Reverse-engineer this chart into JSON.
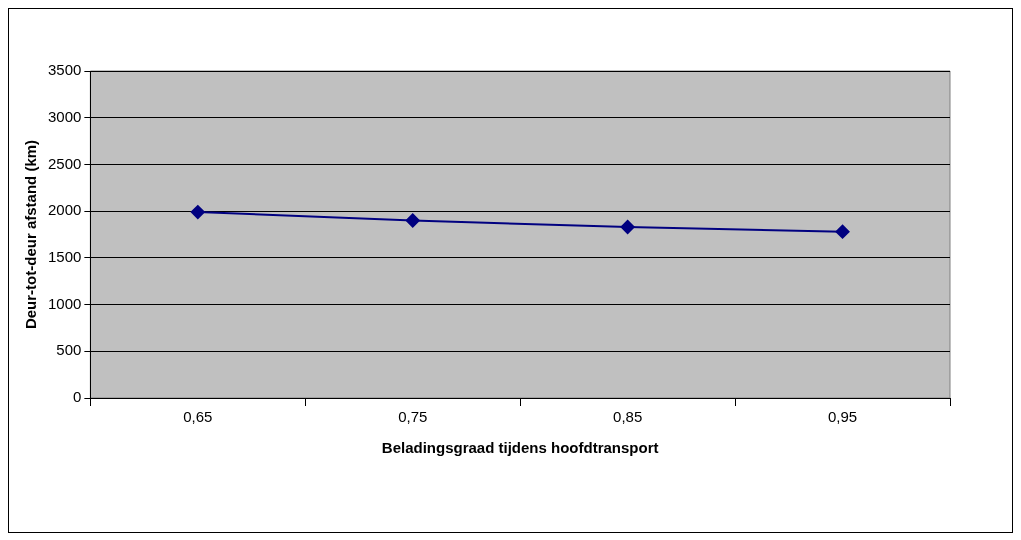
{
  "chart_data": {
    "type": "line",
    "xlabel": "Beladingsgraad tijdens hoofdtransport",
    "ylabel": "Deur-tot-deur afstand (km)",
    "categories": [
      "0,65",
      "0,75",
      "0,85",
      "0,95"
    ],
    "series": [
      {
        "color": "#000080",
        "values": [
          1990,
          1900,
          1830,
          1780
        ]
      }
    ],
    "ylim": [
      0,
      3500
    ],
    "yticks": [
      0,
      500,
      1000,
      1500,
      2000,
      2500,
      3000,
      3500
    ],
    "grid": "y",
    "legend": false,
    "marker": "diamond",
    "line_style": "solid"
  }
}
